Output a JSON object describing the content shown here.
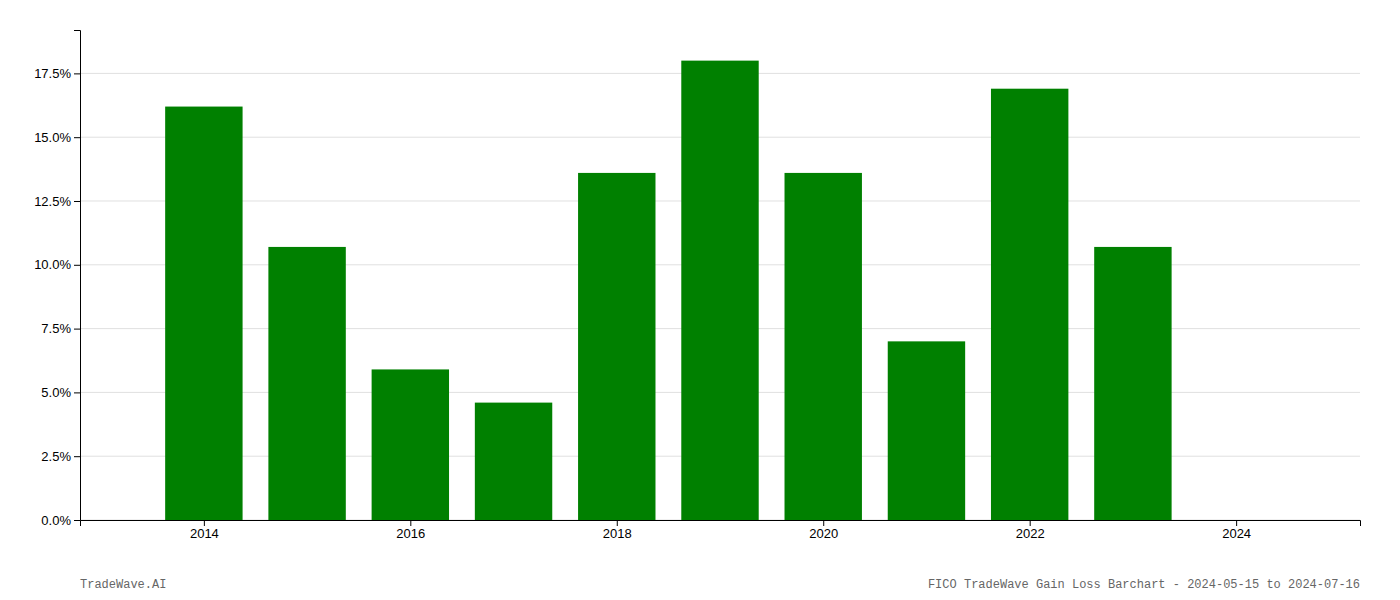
{
  "chart_data": {
    "type": "bar",
    "x": [
      2014,
      2015,
      2016,
      2017,
      2018,
      2019,
      2020,
      2021,
      2022,
      2023
    ],
    "values": [
      0.162,
      0.107,
      0.059,
      0.046,
      0.136,
      0.18,
      0.136,
      0.07,
      0.169,
      0.107
    ],
    "color": "#008000",
    "xlim": [
      2012.8,
      2025.2
    ],
    "xticks": [
      2014,
      2016,
      2018,
      2020,
      2022,
      2024
    ],
    "ylim": [
      0,
      0.192
    ],
    "yticks": [
      {
        "value": 0.0,
        "label": "0.0%"
      },
      {
        "value": 0.025,
        "label": "2.5%"
      },
      {
        "value": 0.05,
        "label": "5.0%"
      },
      {
        "value": 0.075,
        "label": "7.5%"
      },
      {
        "value": 0.1,
        "label": "10.0%"
      },
      {
        "value": 0.125,
        "label": "12.5%"
      },
      {
        "value": 0.15,
        "label": "15.0%"
      },
      {
        "value": 0.175,
        "label": "17.5%"
      }
    ],
    "grid": true,
    "annotations": [
      "TradeWave.AI",
      "FICO TradeWave Gain Loss Barchart - 2024-05-15 to 2024-07-16"
    ]
  }
}
